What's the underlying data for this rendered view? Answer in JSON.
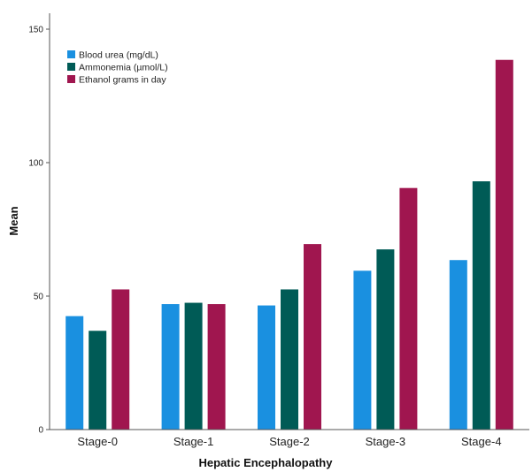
{
  "chart_data": {
    "type": "bar",
    "categories": [
      "Stage-0",
      "Stage-1",
      "Stage-2",
      "Stage-3",
      "Stage-4"
    ],
    "series": [
      {
        "name": "Blood urea (mg/dL)",
        "color": "#1a90e0",
        "values": [
          42.5,
          47,
          46.5,
          59.5,
          63.5
        ]
      },
      {
        "name": "Ammonemia (µmol/L)",
        "color": "#005b56",
        "values": [
          37,
          47.5,
          52.5,
          67.5,
          93
        ]
      },
      {
        "name": "Ethanol grams in day",
        "color": "#a0164f",
        "values": [
          52.5,
          47,
          69.5,
          90.5,
          138.5
        ]
      }
    ],
    "xlabel": "Hepatic Encephalopathy",
    "ylabel": "Mean",
    "ylim": [
      0,
      150
    ],
    "yticks": [
      0,
      50,
      100,
      150
    ],
    "grid": false,
    "legend_position": "top-left"
  }
}
